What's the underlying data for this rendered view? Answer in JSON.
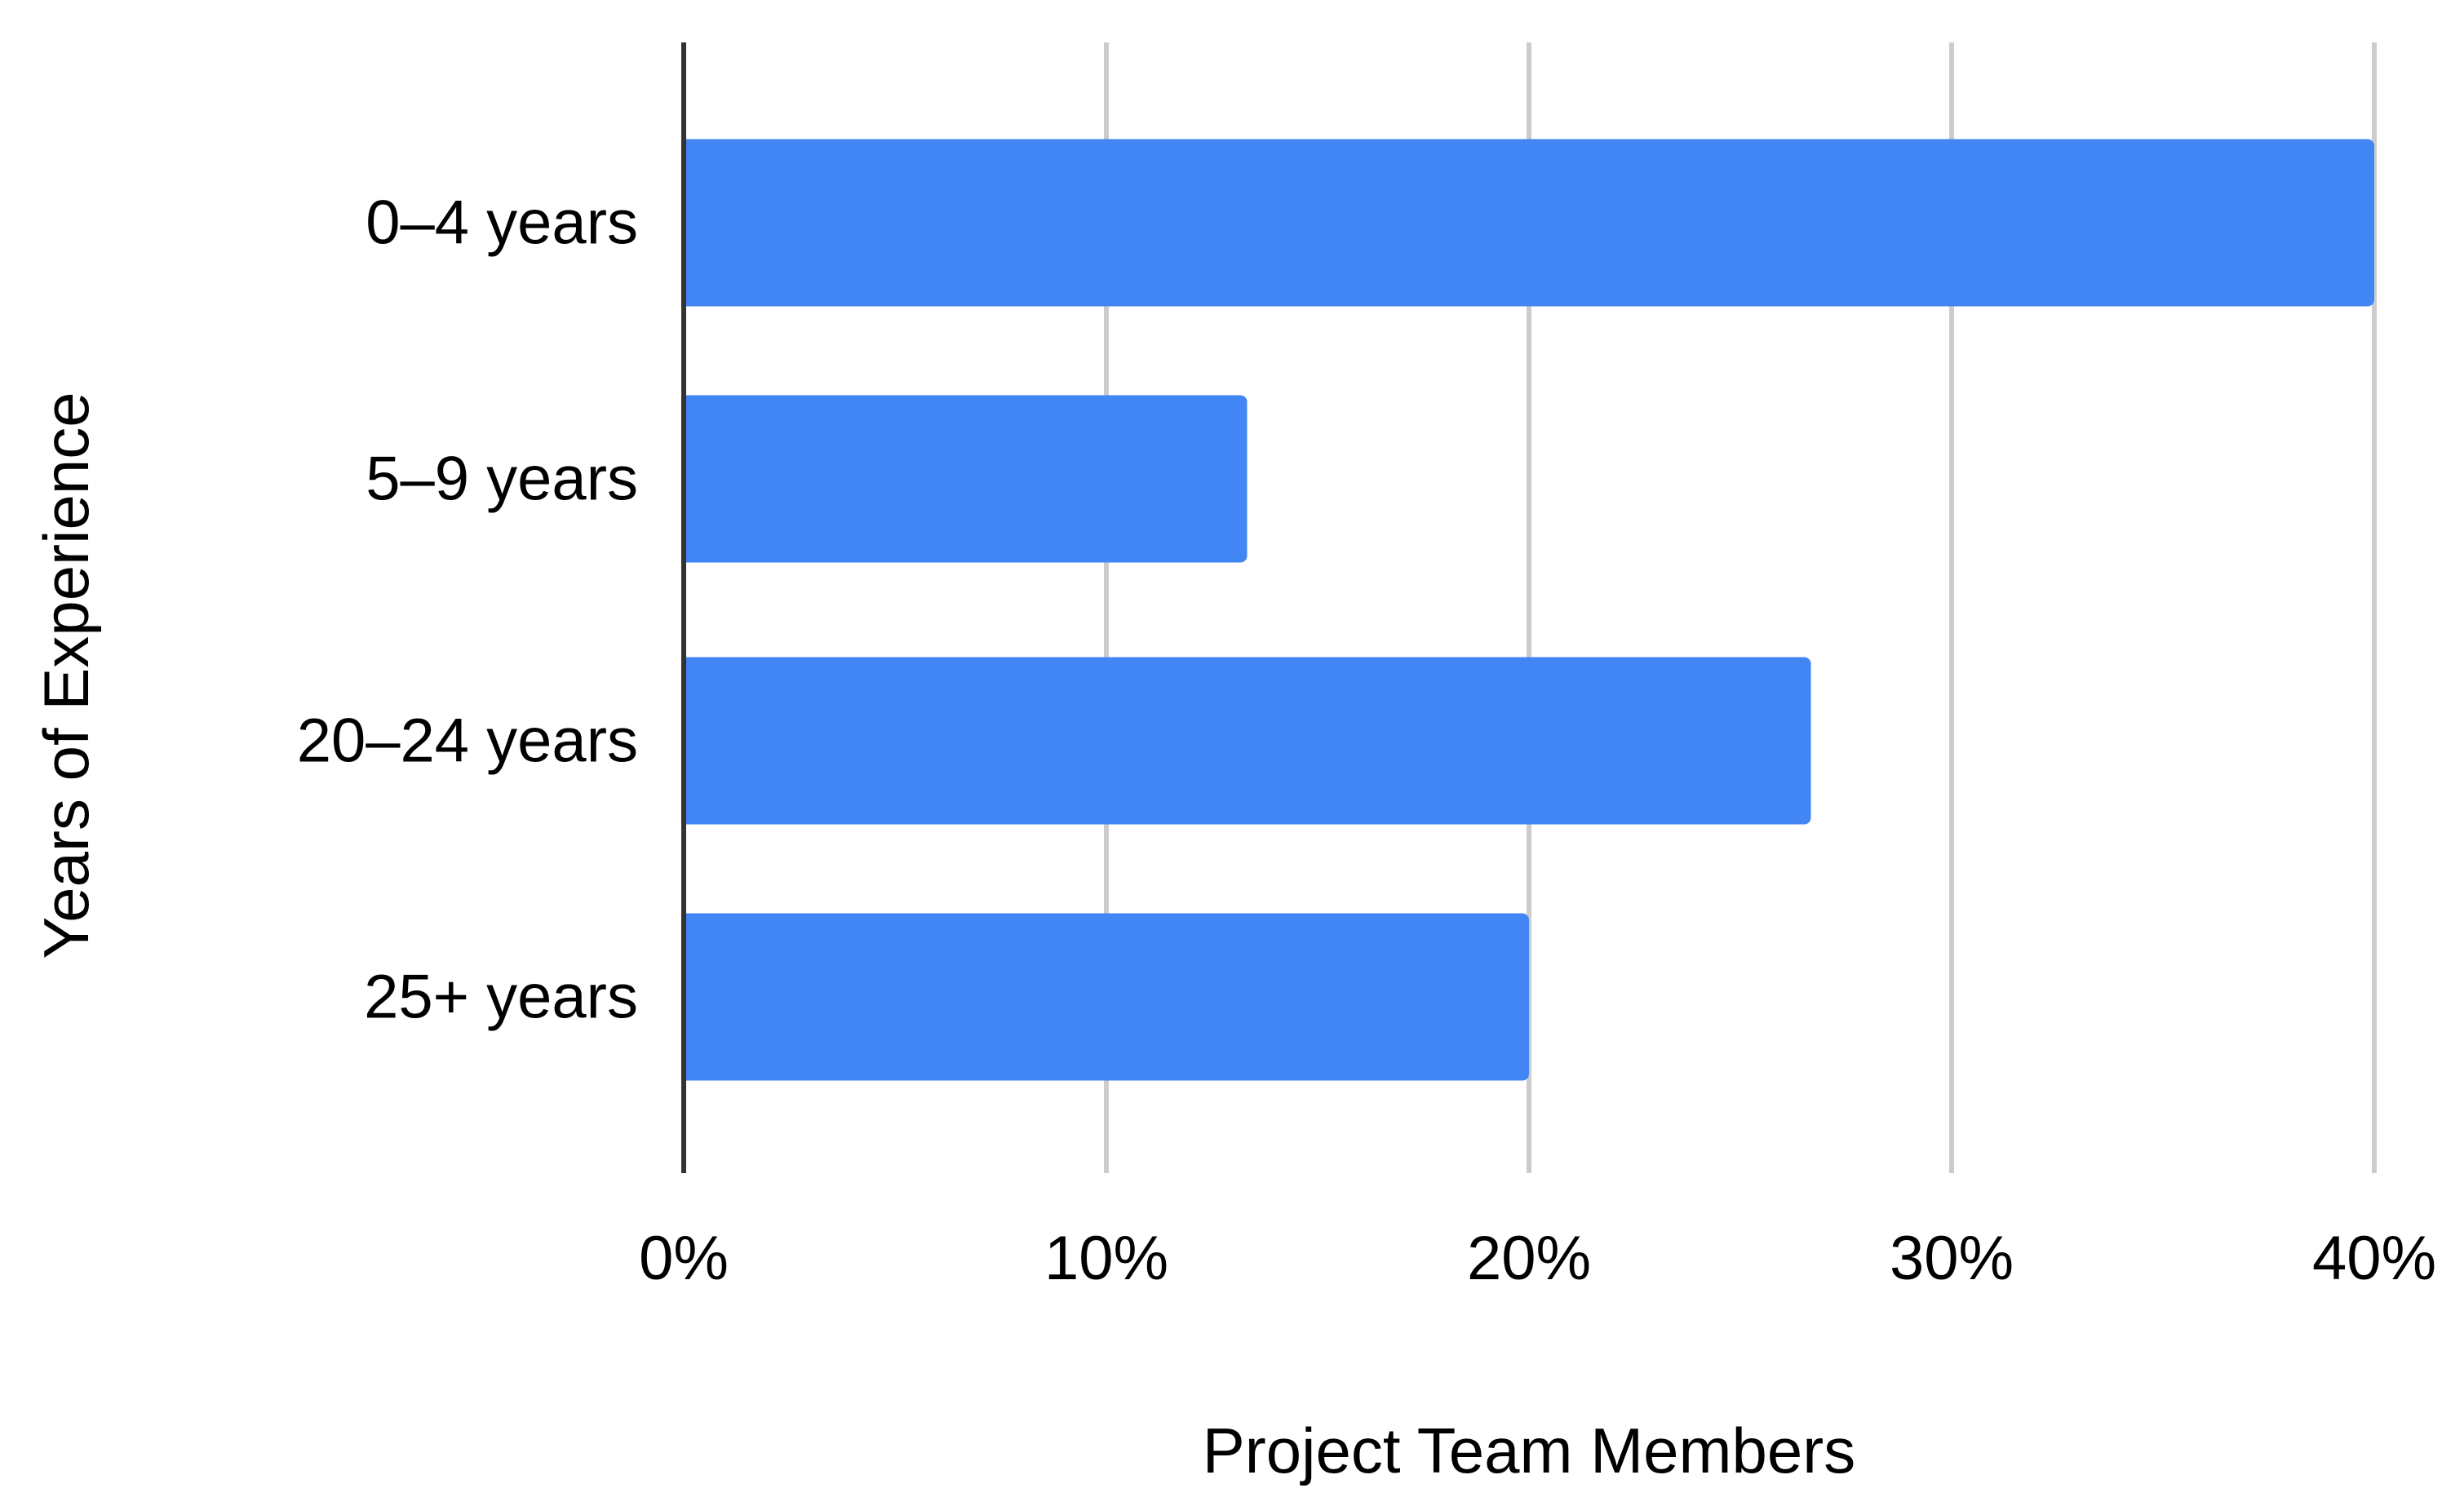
{
  "chart_data": {
    "type": "bar",
    "orientation": "horizontal",
    "title": "",
    "xlabel": "Project Team Members",
    "ylabel": "Years of Experience",
    "categories": [
      "0–4 years",
      "5–9 years",
      "20–24 years",
      "25+ years"
    ],
    "values": [
      0.4,
      0.1333,
      0.2667,
      0.2
    ],
    "xlim": [
      0,
      0.4
    ],
    "x_ticks": [
      0,
      0.1,
      0.2,
      0.3,
      0.4
    ],
    "x_tick_labels": [
      "0%",
      "10%",
      "20%",
      "30%",
      "40%"
    ],
    "grid": "vertical",
    "legend": "none",
    "colors": {
      "bar": "#4285f4",
      "grid": "#cccccc",
      "axis": "#333333",
      "text": "#000000"
    }
  }
}
